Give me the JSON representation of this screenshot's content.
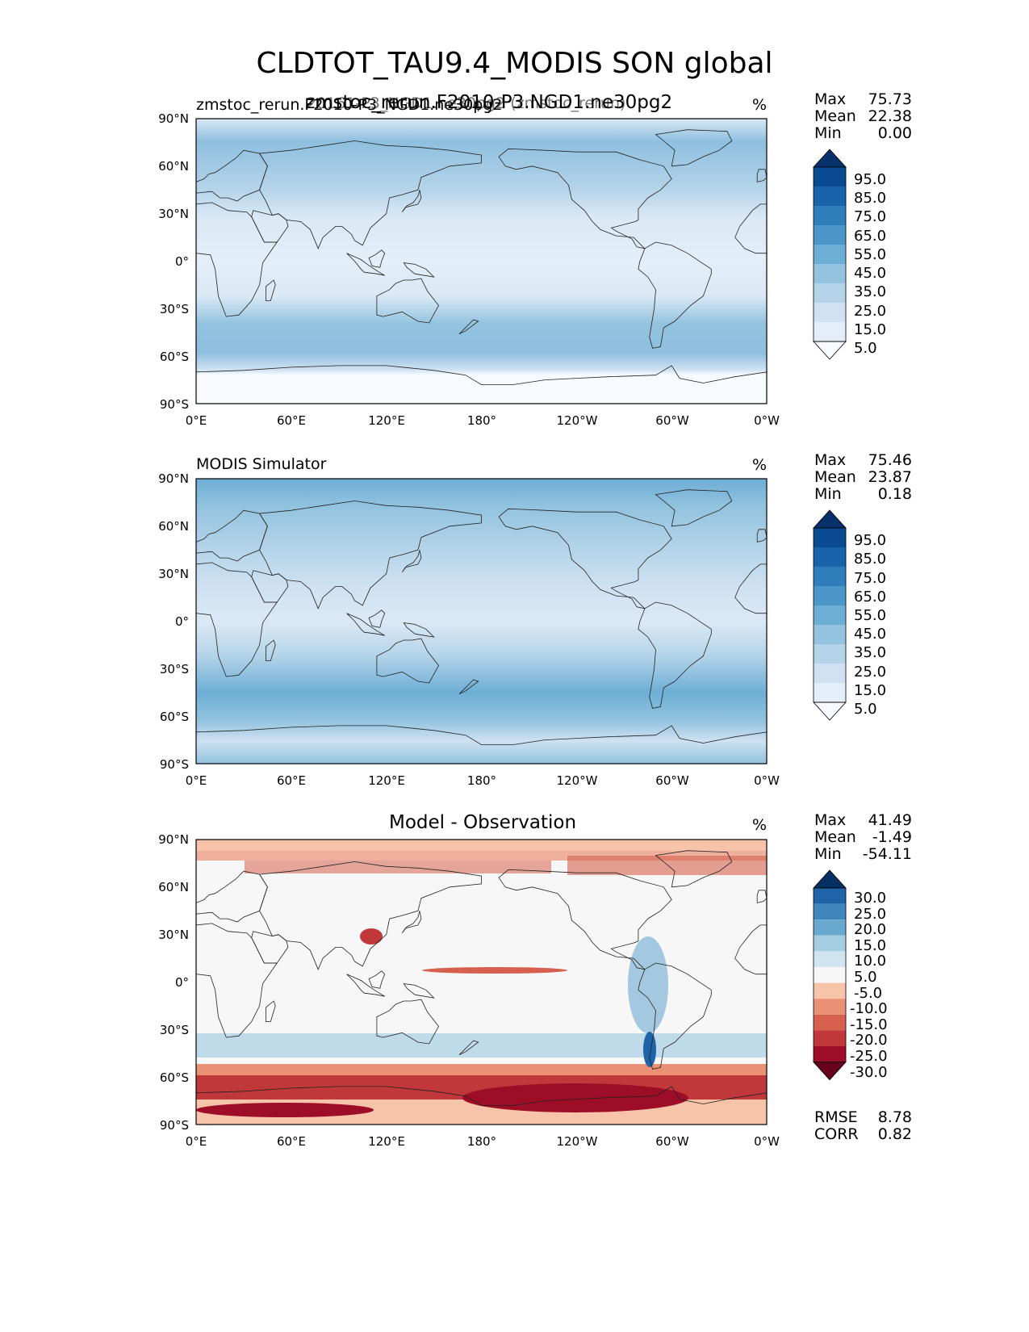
{
  "figure": {
    "title": "CLDTOT_TAU9.4_MODIS SON global"
  },
  "panels": [
    {
      "id": "test",
      "left_label": "zmstoc_rerun.F2010-P3_NGD1.ne30pg2",
      "overlay_label": "20161-P3_NGD1.ne30pg2 (zmstoc_rerun)",
      "center_label": "zmstoc_rerun.F2010-P3.NGD1.ne30pg2",
      "units": "%",
      "stats": [
        {
          "name": "Max",
          "value": "75.73"
        },
        {
          "name": "Mean",
          "value": "22.38"
        },
        {
          "name": "Min",
          "value": "0.00"
        }
      ],
      "colorbar_labels": [
        "95.0",
        "85.0",
        "75.0",
        "65.0",
        "55.0",
        "45.0",
        "35.0",
        "25.0",
        "15.0",
        "5.0"
      ]
    },
    {
      "id": "reference",
      "left_label": "MODIS Simulator",
      "units": "%",
      "stats": [
        {
          "name": "Max",
          "value": "75.46"
        },
        {
          "name": "Mean",
          "value": "23.87"
        },
        {
          "name": "Min",
          "value": "0.18"
        }
      ],
      "colorbar_labels": [
        "95.0",
        "85.0",
        "75.0",
        "65.0",
        "55.0",
        "45.0",
        "35.0",
        "25.0",
        "15.0",
        "5.0"
      ]
    },
    {
      "id": "difference",
      "center_label": "Model - Observation",
      "units": "%",
      "stats": [
        {
          "name": "Max",
          "value": "41.49"
        },
        {
          "name": "Mean",
          "value": "-1.49"
        },
        {
          "name": "Min",
          "value": "-54.11"
        }
      ],
      "colorbar_labels": [
        "30.0",
        "25.0",
        "20.0",
        "15.0",
        "10.0",
        "5.0",
        "-5.0",
        "-10.0",
        "-15.0",
        "-20.0",
        "-25.0",
        "-30.0"
      ],
      "extra_stats": [
        {
          "name": "RMSE",
          "value": "8.78"
        },
        {
          "name": "CORR",
          "value": "0.82"
        }
      ]
    }
  ],
  "axes": {
    "lat_labels": [
      "90°N",
      "60°N",
      "30°N",
      "0°",
      "30°S",
      "60°S",
      "90°S"
    ],
    "lon_labels": [
      "0°E",
      "60°E",
      "120°E",
      "180°",
      "120°W",
      "60°W",
      "0°W"
    ]
  },
  "colors": {
    "blues": [
      "#f7fbff",
      "#e3eef8",
      "#cfe1f2",
      "#b5d4e9",
      "#93c3df",
      "#6daed5",
      "#4b97c9",
      "#2f7ebc",
      "#1864aa",
      "#0a4a90",
      "#08306b"
    ],
    "rdbu": [
      "#67001f",
      "#9e0d27",
      "#c0383a",
      "#d6604d",
      "#e99075",
      "#f7c3a9",
      "#f7f7f7",
      "#d1e5f0",
      "#a6cee3",
      "#6aa9cf",
      "#3f87bd",
      "#1f63a8",
      "#053061"
    ]
  }
}
